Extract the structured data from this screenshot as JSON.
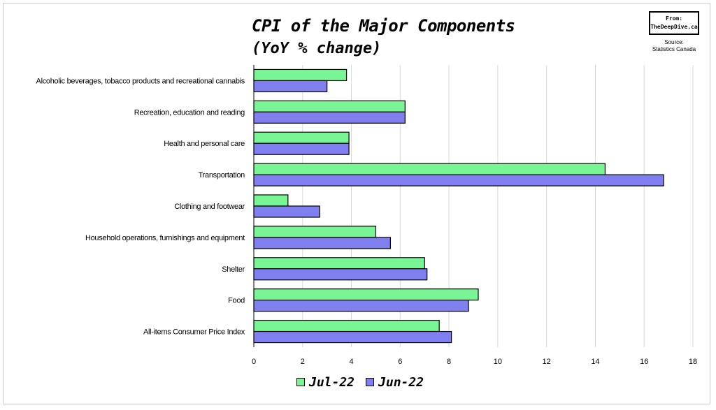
{
  "header": {
    "title": "CPI of the Major Components",
    "subtitle": "(YoY % change)",
    "badge_from": "From:",
    "badge_site": "TheDeepDive.ca",
    "source_label": "Source:",
    "source_value": "Statistics Canada"
  },
  "colors": {
    "jul": "#7af595",
    "jun": "#7f7ff0",
    "grid": "#d9d9d9",
    "outline": "#000000"
  },
  "chart_data": {
    "type": "bar",
    "orientation": "horizontal",
    "title": "CPI of the Major Components",
    "subtitle": "(YoY % change)",
    "categories": [
      "Alcoholic beverages, tobacco products and recreational cannabis",
      "Recreation, education and reading",
      "Health and personal care",
      "Transportation",
      "Clothing and footwear",
      "Household operations, furnishings and equipment",
      "Shelter",
      "Food",
      "All-items Consumer Price Index"
    ],
    "series": [
      {
        "name": "Jul-22",
        "values": [
          3.8,
          6.2,
          3.9,
          14.4,
          1.4,
          5.0,
          7.0,
          9.2,
          7.6
        ]
      },
      {
        "name": "Jun-22",
        "values": [
          3.0,
          6.2,
          3.9,
          16.8,
          2.7,
          5.6,
          7.1,
          8.8,
          8.1
        ]
      }
    ],
    "xlim": [
      0,
      18
    ],
    "xticks": [
      "0",
      "2",
      "4",
      "6",
      "8",
      "10",
      "12",
      "14",
      "16",
      "18"
    ],
    "xlabel": "",
    "ylabel": "",
    "grid": "vertical",
    "legend_position": "bottom"
  }
}
